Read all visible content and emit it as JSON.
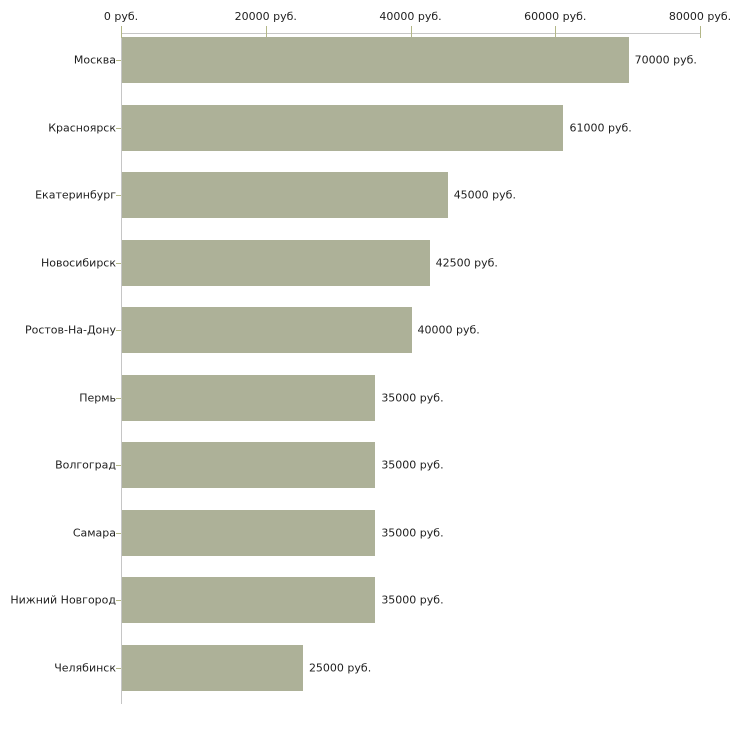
{
  "chart_data": {
    "type": "bar",
    "orientation": "horizontal",
    "title": "",
    "xlabel": "",
    "ylabel": "",
    "unit": "руб.",
    "categories": [
      "Москва",
      "Красноярск",
      "Екатеринбург",
      "Новосибирск",
      "Ростов-На-Дону",
      "Пермь",
      "Волгоград",
      "Самара",
      "Нижний Новгород",
      "Челябинск"
    ],
    "values": [
      70000,
      61000,
      45000,
      42500,
      40000,
      35000,
      35000,
      35000,
      35000,
      25000
    ],
    "value_labels": [
      "70000 руб.",
      "61000 руб.",
      "45000 руб.",
      "42500 руб.",
      "40000 руб.",
      "35000 руб.",
      "35000 руб.",
      "35000 руб.",
      "35000 руб.",
      "25000 руб."
    ],
    "xlim": [
      0,
      80000
    ],
    "x_axis": {
      "position": "top",
      "ticks": [
        0,
        20000,
        40000,
        60000,
        80000
      ],
      "tick_labels": [
        "0 руб.",
        "20000 руб.",
        "40000 руб.",
        "60000 руб.",
        "80000 руб."
      ]
    },
    "grid": false,
    "legend": null,
    "colors": {
      "bar": "#adb198",
      "axis_line": "#c6c6c6",
      "tick_mark": "#b3b787",
      "text": "#1f1f1f",
      "background": "#ffffff"
    }
  }
}
